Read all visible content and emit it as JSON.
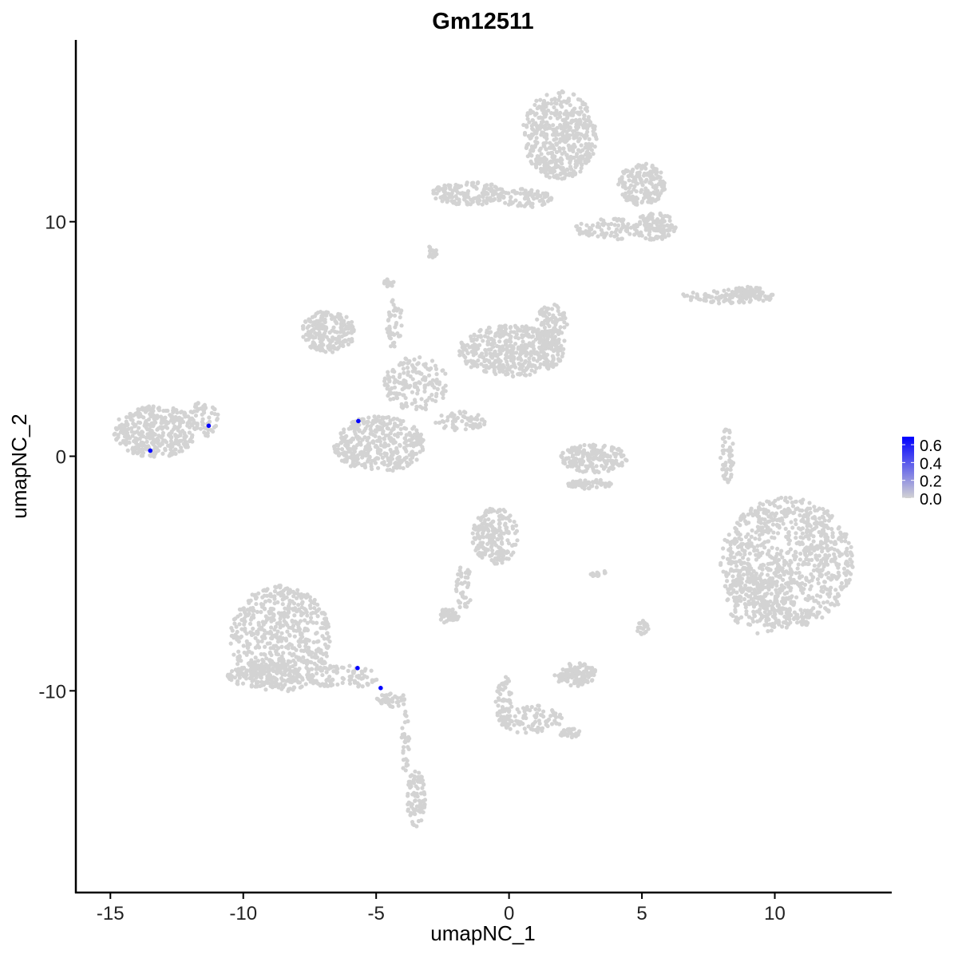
{
  "chart_data": {
    "type": "scatter",
    "title": "Gm12511",
    "xlabel": "umapNC_1",
    "ylabel": "umapNC_2",
    "xlim": [
      -16.3,
      14.4
    ],
    "ylim": [
      -18.6,
      17.75
    ],
    "x_ticks": [
      -15,
      -10,
      -5,
      0,
      5,
      10
    ],
    "y_ticks": [
      -10,
      0,
      10
    ],
    "grid": false,
    "background_color": "#D3D3D3",
    "colorscale": {
      "low": "#D3D3D3",
      "high": "#0000FF",
      "range": [
        0,
        0.69
      ],
      "ticks": [
        "0.0",
        "0.2",
        "0.4",
        "0.6"
      ],
      "placement": "right"
    },
    "expressing_points": [
      {
        "x": -13.5,
        "y": 0.24,
        "value": 0.69
      },
      {
        "x": -11.3,
        "y": 1.3,
        "value": 0.69
      },
      {
        "x": -5.67,
        "y": 1.5,
        "value": 0.69
      },
      {
        "x": -5.7,
        "y": -9.03,
        "value": 0.69
      },
      {
        "x": -4.83,
        "y": -9.88,
        "value": 0.69
      }
    ]
  }
}
